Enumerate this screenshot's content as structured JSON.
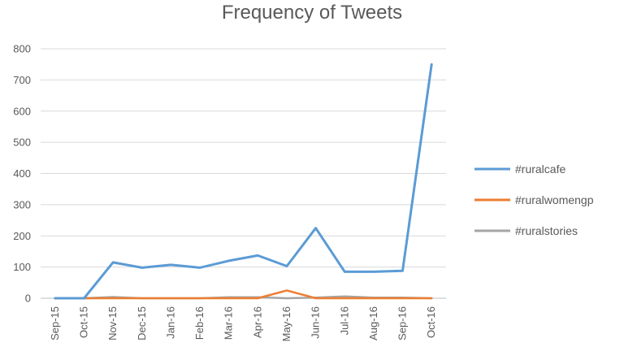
{
  "chart_data": {
    "type": "line",
    "title": "Frequency of Tweets",
    "xlabel": "",
    "ylabel": "",
    "categories": [
      "Sep-15",
      "Oct-15",
      "Nov-15",
      "Dec-15",
      "Jan-16",
      "Feb-16",
      "Mar-16",
      "Apr-16",
      "May-16",
      "Jun-16",
      "Jul-16",
      "Aug-16",
      "Sep-16",
      "Oct-16"
    ],
    "ylim": [
      0,
      800
    ],
    "yticks": [
      "0",
      "100",
      "200",
      "300",
      "400",
      "500",
      "600",
      "700",
      "800"
    ],
    "grid": true,
    "legend_position": "right",
    "series": [
      {
        "name": "#ruralcafe",
        "color": "#5b9bd5",
        "values": [
          0,
          0,
          115,
          98,
          107,
          98,
          120,
          137,
          103,
          225,
          85,
          85,
          88,
          750
        ]
      },
      {
        "name": "#ruralwomengp",
        "color": "#ed7d31",
        "values": [
          0,
          0,
          0,
          0,
          0,
          0,
          0,
          0,
          25,
          0,
          0,
          0,
          0,
          0
        ]
      },
      {
        "name": "#ruralstories",
        "color": "#a5a5a5",
        "values": [
          0,
          0,
          4,
          0,
          0,
          0,
          3,
          3,
          0,
          2,
          6,
          2,
          2,
          0
        ]
      }
    ]
  }
}
